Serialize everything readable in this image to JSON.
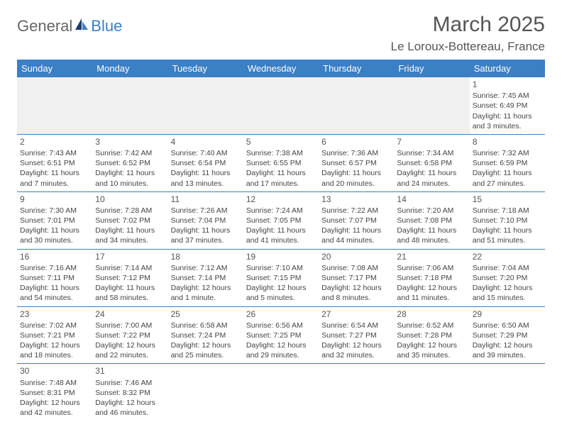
{
  "logo": {
    "part1": "General",
    "part2": "Blue"
  },
  "title": "March 2025",
  "location": "Le Loroux-Bottereau, France",
  "colors": {
    "header_bg": "#3b7fc4",
    "header_text": "#ffffff",
    "grid_line": "#3b7fc4",
    "empty_bg": "#f0f0f0",
    "text": "#444444"
  },
  "day_headers": [
    "Sunday",
    "Monday",
    "Tuesday",
    "Wednesday",
    "Thursday",
    "Friday",
    "Saturday"
  ],
  "weeks": [
    [
      null,
      null,
      null,
      null,
      null,
      null,
      {
        "day": "1",
        "sunrise": "Sunrise: 7:45 AM",
        "sunset": "Sunset: 6:49 PM",
        "daylight": "Daylight: 11 hours and 3 minutes."
      }
    ],
    [
      {
        "day": "2",
        "sunrise": "Sunrise: 7:43 AM",
        "sunset": "Sunset: 6:51 PM",
        "daylight": "Daylight: 11 hours and 7 minutes."
      },
      {
        "day": "3",
        "sunrise": "Sunrise: 7:42 AM",
        "sunset": "Sunset: 6:52 PM",
        "daylight": "Daylight: 11 hours and 10 minutes."
      },
      {
        "day": "4",
        "sunrise": "Sunrise: 7:40 AM",
        "sunset": "Sunset: 6:54 PM",
        "daylight": "Daylight: 11 hours and 13 minutes."
      },
      {
        "day": "5",
        "sunrise": "Sunrise: 7:38 AM",
        "sunset": "Sunset: 6:55 PM",
        "daylight": "Daylight: 11 hours and 17 minutes."
      },
      {
        "day": "6",
        "sunrise": "Sunrise: 7:36 AM",
        "sunset": "Sunset: 6:57 PM",
        "daylight": "Daylight: 11 hours and 20 minutes."
      },
      {
        "day": "7",
        "sunrise": "Sunrise: 7:34 AM",
        "sunset": "Sunset: 6:58 PM",
        "daylight": "Daylight: 11 hours and 24 minutes."
      },
      {
        "day": "8",
        "sunrise": "Sunrise: 7:32 AM",
        "sunset": "Sunset: 6:59 PM",
        "daylight": "Daylight: 11 hours and 27 minutes."
      }
    ],
    [
      {
        "day": "9",
        "sunrise": "Sunrise: 7:30 AM",
        "sunset": "Sunset: 7:01 PM",
        "daylight": "Daylight: 11 hours and 30 minutes."
      },
      {
        "day": "10",
        "sunrise": "Sunrise: 7:28 AM",
        "sunset": "Sunset: 7:02 PM",
        "daylight": "Daylight: 11 hours and 34 minutes."
      },
      {
        "day": "11",
        "sunrise": "Sunrise: 7:26 AM",
        "sunset": "Sunset: 7:04 PM",
        "daylight": "Daylight: 11 hours and 37 minutes."
      },
      {
        "day": "12",
        "sunrise": "Sunrise: 7:24 AM",
        "sunset": "Sunset: 7:05 PM",
        "daylight": "Daylight: 11 hours and 41 minutes."
      },
      {
        "day": "13",
        "sunrise": "Sunrise: 7:22 AM",
        "sunset": "Sunset: 7:07 PM",
        "daylight": "Daylight: 11 hours and 44 minutes."
      },
      {
        "day": "14",
        "sunrise": "Sunrise: 7:20 AM",
        "sunset": "Sunset: 7:08 PM",
        "daylight": "Daylight: 11 hours and 48 minutes."
      },
      {
        "day": "15",
        "sunrise": "Sunrise: 7:18 AM",
        "sunset": "Sunset: 7:10 PM",
        "daylight": "Daylight: 11 hours and 51 minutes."
      }
    ],
    [
      {
        "day": "16",
        "sunrise": "Sunrise: 7:16 AM",
        "sunset": "Sunset: 7:11 PM",
        "daylight": "Daylight: 11 hours and 54 minutes."
      },
      {
        "day": "17",
        "sunrise": "Sunrise: 7:14 AM",
        "sunset": "Sunset: 7:12 PM",
        "daylight": "Daylight: 11 hours and 58 minutes."
      },
      {
        "day": "18",
        "sunrise": "Sunrise: 7:12 AM",
        "sunset": "Sunset: 7:14 PM",
        "daylight": "Daylight: 12 hours and 1 minute."
      },
      {
        "day": "19",
        "sunrise": "Sunrise: 7:10 AM",
        "sunset": "Sunset: 7:15 PM",
        "daylight": "Daylight: 12 hours and 5 minutes."
      },
      {
        "day": "20",
        "sunrise": "Sunrise: 7:08 AM",
        "sunset": "Sunset: 7:17 PM",
        "daylight": "Daylight: 12 hours and 8 minutes."
      },
      {
        "day": "21",
        "sunrise": "Sunrise: 7:06 AM",
        "sunset": "Sunset: 7:18 PM",
        "daylight": "Daylight: 12 hours and 11 minutes."
      },
      {
        "day": "22",
        "sunrise": "Sunrise: 7:04 AM",
        "sunset": "Sunset: 7:20 PM",
        "daylight": "Daylight: 12 hours and 15 minutes."
      }
    ],
    [
      {
        "day": "23",
        "sunrise": "Sunrise: 7:02 AM",
        "sunset": "Sunset: 7:21 PM",
        "daylight": "Daylight: 12 hours and 18 minutes."
      },
      {
        "day": "24",
        "sunrise": "Sunrise: 7:00 AM",
        "sunset": "Sunset: 7:22 PM",
        "daylight": "Daylight: 12 hours and 22 minutes."
      },
      {
        "day": "25",
        "sunrise": "Sunrise: 6:58 AM",
        "sunset": "Sunset: 7:24 PM",
        "daylight": "Daylight: 12 hours and 25 minutes."
      },
      {
        "day": "26",
        "sunrise": "Sunrise: 6:56 AM",
        "sunset": "Sunset: 7:25 PM",
        "daylight": "Daylight: 12 hours and 29 minutes."
      },
      {
        "day": "27",
        "sunrise": "Sunrise: 6:54 AM",
        "sunset": "Sunset: 7:27 PM",
        "daylight": "Daylight: 12 hours and 32 minutes."
      },
      {
        "day": "28",
        "sunrise": "Sunrise: 6:52 AM",
        "sunset": "Sunset: 7:28 PM",
        "daylight": "Daylight: 12 hours and 35 minutes."
      },
      {
        "day": "29",
        "sunrise": "Sunrise: 6:50 AM",
        "sunset": "Sunset: 7:29 PM",
        "daylight": "Daylight: 12 hours and 39 minutes."
      }
    ],
    [
      {
        "day": "30",
        "sunrise": "Sunrise: 7:48 AM",
        "sunset": "Sunset: 8:31 PM",
        "daylight": "Daylight: 12 hours and 42 minutes."
      },
      {
        "day": "31",
        "sunrise": "Sunrise: 7:46 AM",
        "sunset": "Sunset: 8:32 PM",
        "daylight": "Daylight: 12 hours and 46 minutes."
      },
      null,
      null,
      null,
      null,
      null
    ]
  ]
}
